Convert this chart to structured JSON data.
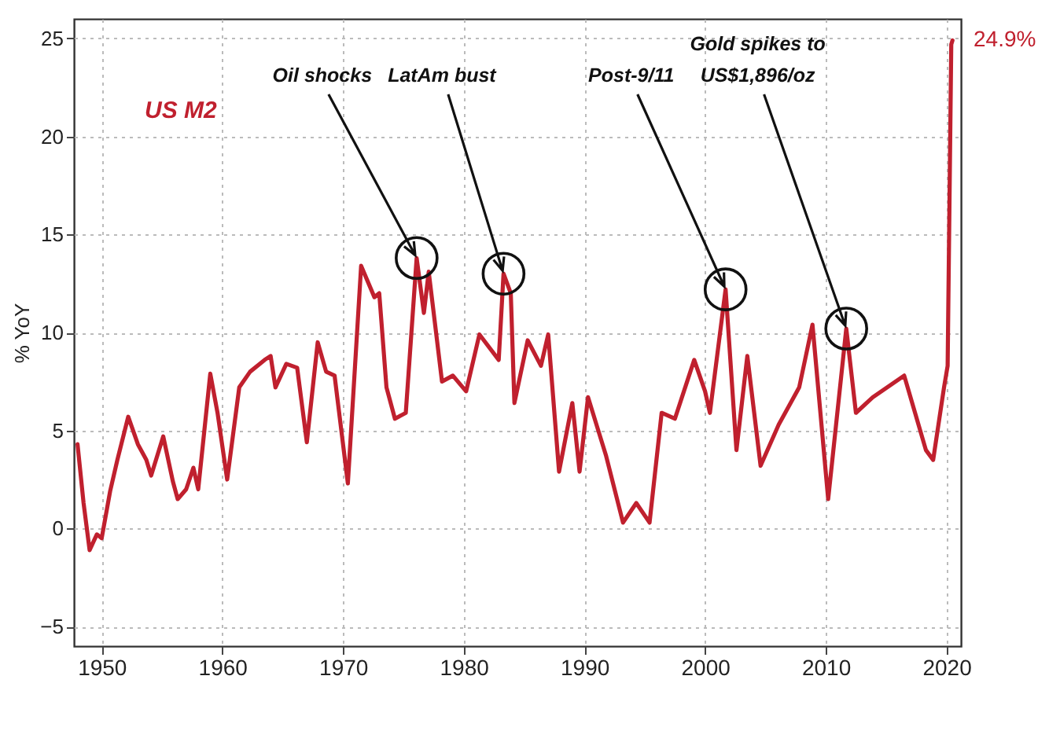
{
  "chart_data": {
    "type": "line",
    "ylabel": "% YoY",
    "xlim": [
      1947.7,
      2021.2
    ],
    "xticks": [
      1950,
      1960,
      1970,
      1980,
      1990,
      2000,
      2010,
      2020
    ],
    "ylim": [
      -6,
      26
    ],
    "yticks": [
      -5,
      0,
      5,
      10,
      15,
      20,
      25
    ],
    "grid": true,
    "line_style": "solid",
    "annotations": [
      {
        "text": "Oil shocks",
        "x": 1976.1,
        "y": 13.8
      },
      {
        "text": "LatAm bust",
        "x": 1983.3,
        "y": 13.0
      },
      {
        "text": "Post-9/11",
        "x": 2001.7,
        "y": 12.2
      },
      {
        "text": "Gold spikes to\nUS$1,896/oz",
        "x": 2011.7,
        "y": 10.2
      }
    ],
    "series": [
      {
        "name": "US M2",
        "color": "#c0202e",
        "x": [
          1948.0,
          1948.5,
          1949.0,
          1949.6,
          1950.0,
          1950.7,
          1951.3,
          1952.2,
          1953.0,
          1953.7,
          1954.1,
          1955.1,
          1955.9,
          1956.3,
          1957.0,
          1957.6,
          1958.0,
          1959.0,
          1959.6,
          1960.4,
          1961.4,
          1962.3,
          1963.5,
          1964.0,
          1964.4,
          1965.3,
          1966.2,
          1967.0,
          1967.9,
          1968.6,
          1969.3,
          1970.4,
          1971.5,
          1972.6,
          1973.0,
          1973.6,
          1974.3,
          1975.2,
          1976.1,
          1976.7,
          1977.1,
          1978.2,
          1979.1,
          1980.2,
          1981.3,
          1982.9,
          1983.3,
          1983.9,
          1984.2,
          1985.3,
          1986.4,
          1987.0,
          1987.9,
          1989.0,
          1989.6,
          1990.3,
          1991.8,
          1993.2,
          1994.3,
          1995.4,
          1996.4,
          1997.5,
          1999.1,
          2000.0,
          2000.4,
          2001.7,
          2002.6,
          2003.5,
          2004.6,
          2006.1,
          2007.8,
          2008.9,
          2010.2,
          2011.7,
          2012.5,
          2013.9,
          2016.5,
          2018.3,
          2018.9,
          2019.8,
          2020.1,
          2020.4,
          2020.5
        ],
        "values": [
          4.3,
          1.3,
          -1.1,
          -0.3,
          -0.5,
          1.9,
          3.5,
          5.7,
          4.3,
          3.5,
          2.7,
          4.7,
          2.4,
          1.5,
          2.0,
          3.1,
          2.0,
          7.9,
          5.9,
          2.5,
          7.2,
          8.0,
          8.6,
          8.8,
          7.2,
          8.4,
          8.2,
          4.4,
          9.5,
          8.0,
          7.8,
          2.3,
          13.4,
          11.8,
          12.0,
          7.2,
          5.6,
          5.9,
          13.8,
          11.0,
          13.1,
          7.5,
          7.8,
          7.0,
          9.9,
          8.6,
          13.0,
          12.0,
          6.4,
          9.6,
          8.3,
          9.9,
          2.9,
          6.4,
          2.9,
          6.7,
          3.7,
          0.3,
          1.3,
          0.3,
          5.9,
          5.6,
          8.6,
          7.0,
          5.9,
          12.2,
          4.0,
          8.8,
          3.2,
          5.3,
          7.2,
          10.4,
          1.5,
          10.2,
          5.9,
          6.7,
          7.8,
          4.0,
          3.5,
          7.2,
          8.3,
          24.7,
          24.9
        ],
        "value_labels": [
          null,
          null,
          null,
          null,
          null,
          null,
          null,
          null,
          null,
          null,
          null,
          null,
          null,
          null,
          null,
          null,
          null,
          null,
          null,
          null,
          null,
          null,
          null,
          null,
          null,
          null,
          null,
          null,
          null,
          null,
          null,
          null,
          null,
          null,
          null,
          null,
          null,
          null,
          null,
          null,
          null,
          null,
          null,
          null,
          null,
          null,
          null,
          null,
          null,
          null,
          null,
          null,
          null,
          null,
          null,
          null,
          null,
          null,
          null,
          null,
          null,
          null,
          null,
          null,
          null,
          null,
          null,
          null,
          null,
          null,
          null,
          null,
          null,
          null,
          null,
          null,
          null,
          null,
          null,
          null,
          null,
          null,
          "24.9%"
        ]
      }
    ]
  }
}
